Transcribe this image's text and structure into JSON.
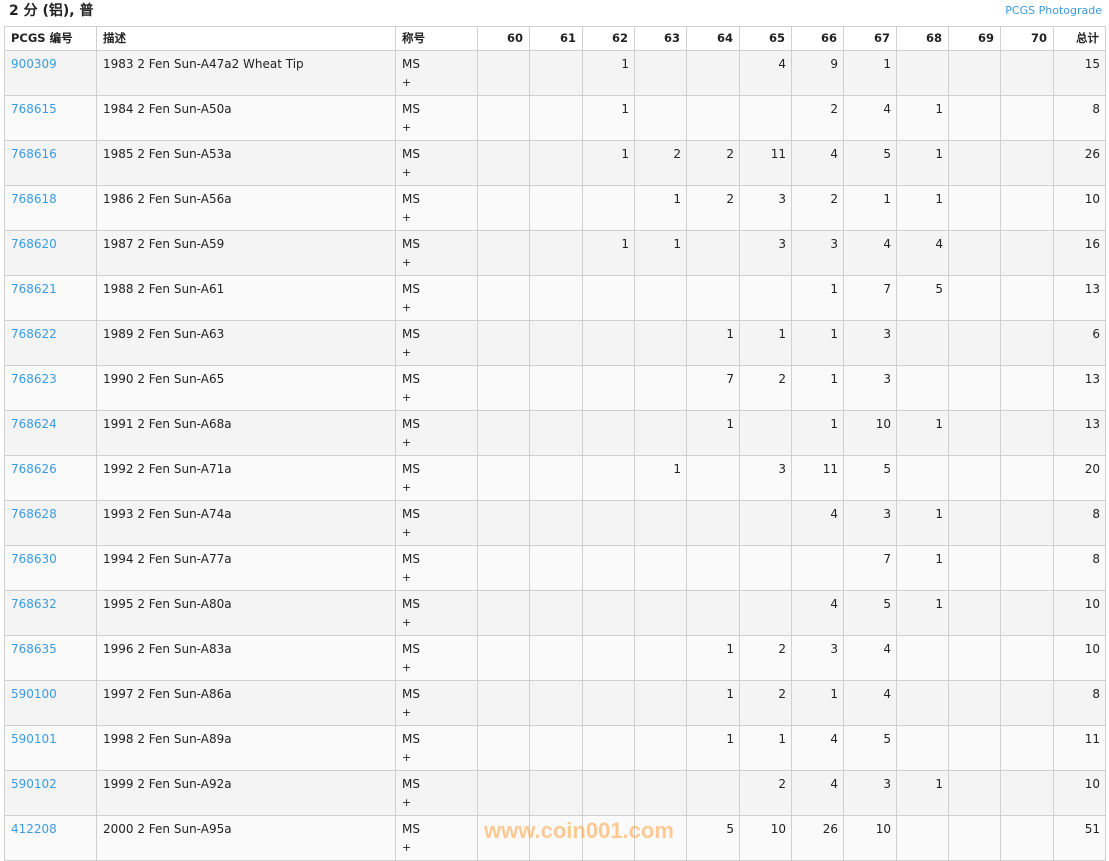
{
  "page": {
    "title": "2 分 (铝), 普",
    "photograde_link": "PCGS Photograde",
    "watermark": "www.coin001.com"
  },
  "table": {
    "headers": [
      "PCGS 编号",
      "描述",
      "称号",
      "60",
      "61",
      "62",
      "63",
      "64",
      "65",
      "66",
      "67",
      "68",
      "69",
      "70",
      "总计"
    ],
    "rows": [
      {
        "id": "900309",
        "desc": "1983 2 Fen Sun-A47a2 Wheat Tip",
        "des": "MS",
        "plus": "+",
        "g": [
          "",
          "",
          "1",
          "",
          "",
          "4",
          "9",
          "1",
          "",
          "",
          ""
        ],
        "total": "15"
      },
      {
        "id": "768615",
        "desc": "1984 2 Fen Sun-A50a",
        "des": "MS",
        "plus": "+",
        "g": [
          "",
          "",
          "1",
          "",
          "",
          "",
          "2",
          "4",
          "1",
          "",
          ""
        ],
        "total": "8"
      },
      {
        "id": "768616",
        "desc": "1985 2 Fen Sun-A53a",
        "des": "MS",
        "plus": "+",
        "g": [
          "",
          "",
          "1",
          "2",
          "2",
          "11",
          "4",
          "5",
          "1",
          "",
          ""
        ],
        "total": "26"
      },
      {
        "id": "768618",
        "desc": "1986 2 Fen Sun-A56a",
        "des": "MS",
        "plus": "+",
        "g": [
          "",
          "",
          "",
          "1",
          "2",
          "3",
          "2",
          "1",
          "1",
          "",
          ""
        ],
        "total": "10"
      },
      {
        "id": "768620",
        "desc": "1987 2 Fen Sun-A59",
        "des": "MS",
        "plus": "+",
        "g": [
          "",
          "",
          "1",
          "1",
          "",
          "3",
          "3",
          "4",
          "4",
          "",
          ""
        ],
        "total": "16"
      },
      {
        "id": "768621",
        "desc": "1988 2 Fen Sun-A61",
        "des": "MS",
        "plus": "+",
        "g": [
          "",
          "",
          "",
          "",
          "",
          "",
          "1",
          "7",
          "5",
          "",
          ""
        ],
        "total": "13"
      },
      {
        "id": "768622",
        "desc": "1989 2 Fen Sun-A63",
        "des": "MS",
        "plus": "+",
        "g": [
          "",
          "",
          "",
          "",
          "1",
          "1",
          "1",
          "3",
          "",
          "",
          ""
        ],
        "total": "6"
      },
      {
        "id": "768623",
        "desc": "1990 2 Fen Sun-A65",
        "des": "MS",
        "plus": "+",
        "g": [
          "",
          "",
          "",
          "",
          "7",
          "2",
          "1",
          "3",
          "",
          "",
          ""
        ],
        "total": "13"
      },
      {
        "id": "768624",
        "desc": "1991 2 Fen Sun-A68a",
        "des": "MS",
        "plus": "+",
        "g": [
          "",
          "",
          "",
          "",
          "1",
          "",
          "1",
          "10",
          "1",
          "",
          ""
        ],
        "total": "13"
      },
      {
        "id": "768626",
        "desc": "1992 2 Fen Sun-A71a",
        "des": "MS",
        "plus": "+",
        "g": [
          "",
          "",
          "",
          "1",
          "",
          "3",
          "11",
          "5",
          "",
          "",
          ""
        ],
        "total": "20"
      },
      {
        "id": "768628",
        "desc": "1993 2 Fen Sun-A74a",
        "des": "MS",
        "plus": "+",
        "g": [
          "",
          "",
          "",
          "",
          "",
          "",
          "4",
          "3",
          "1",
          "",
          ""
        ],
        "total": "8"
      },
      {
        "id": "768630",
        "desc": "1994 2 Fen Sun-A77a",
        "des": "MS",
        "plus": "+",
        "g": [
          "",
          "",
          "",
          "",
          "",
          "",
          "",
          "7",
          "1",
          "",
          ""
        ],
        "total": "8"
      },
      {
        "id": "768632",
        "desc": "1995 2 Fen Sun-A80a",
        "des": "MS",
        "plus": "+",
        "g": [
          "",
          "",
          "",
          "",
          "",
          "",
          "4",
          "5",
          "1",
          "",
          ""
        ],
        "total": "10"
      },
      {
        "id": "768635",
        "desc": "1996 2 Fen Sun-A83a",
        "des": "MS",
        "plus": "+",
        "g": [
          "",
          "",
          "",
          "",
          "1",
          "2",
          "3",
          "4",
          "",
          "",
          ""
        ],
        "total": "10"
      },
      {
        "id": "590100",
        "desc": "1997 2 Fen Sun-A86a",
        "des": "MS",
        "plus": "+",
        "g": [
          "",
          "",
          "",
          "",
          "1",
          "2",
          "1",
          "4",
          "",
          "",
          ""
        ],
        "total": "8"
      },
      {
        "id": "590101",
        "desc": "1998 2 Fen Sun-A89a",
        "des": "MS",
        "plus": "+",
        "g": [
          "",
          "",
          "",
          "",
          "1",
          "1",
          "4",
          "5",
          "",
          "",
          ""
        ],
        "total": "11"
      },
      {
        "id": "590102",
        "desc": "1999 2 Fen Sun-A92a",
        "des": "MS",
        "plus": "+",
        "g": [
          "",
          "",
          "",
          "",
          "",
          "2",
          "4",
          "3",
          "1",
          "",
          ""
        ],
        "total": "10"
      },
      {
        "id": "412208",
        "desc": "2000 2 Fen Sun-A95a",
        "des": "MS",
        "plus": "+",
        "g": [
          "",
          "",
          "",
          "",
          "5",
          "10",
          "26",
          "10",
          "",
          "",
          ""
        ],
        "total": "51"
      }
    ]
  }
}
